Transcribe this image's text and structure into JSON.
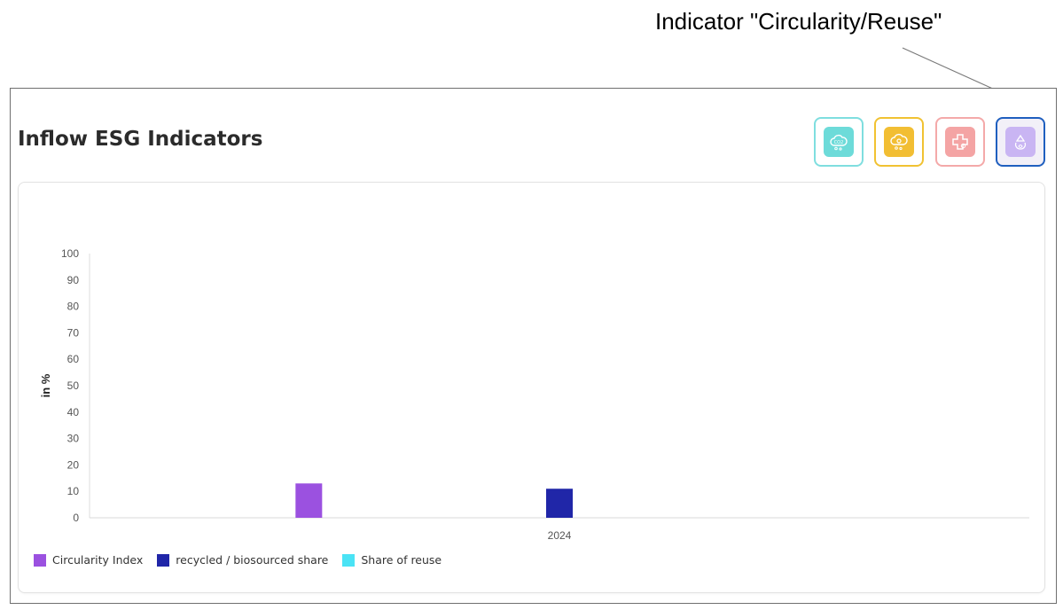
{
  "annotation": {
    "label": "Indicator \"Circularity/Reuse\""
  },
  "widget": {
    "title": "Inflow ESG Indicators",
    "indicator_buttons": [
      {
        "name": "co2-indicator",
        "icon": "cloud-co2-icon",
        "border": "#7fdedf",
        "fill": "#6ddbd9",
        "selected": false
      },
      {
        "name": "energy-indicator",
        "icon": "cloud-gear-icon",
        "border": "#f1c232",
        "fill": "#f2be33",
        "selected": false
      },
      {
        "name": "health-indicator",
        "icon": "medical-cross-icon",
        "border": "#f4a9a9",
        "fill": "#f4a4a4",
        "selected": false
      },
      {
        "name": "circularity-reuse-indicator",
        "icon": "recycle-leaf-icon",
        "border": "#1f5fbf",
        "fill": "#c9b5f3",
        "selected": true
      }
    ]
  },
  "chart_data": {
    "type": "bar",
    "categories": [
      "2024"
    ],
    "series": [
      {
        "name": "Circularity Index",
        "values": [
          13
        ],
        "color": "#9b51e0"
      },
      {
        "name": "recycled / biosourced share",
        "values": [
          11
        ],
        "color": "#2026a8"
      },
      {
        "name": "Share of reuse",
        "values": [
          0
        ],
        "color": "#4ae3f5"
      }
    ],
    "ylabel": "in %",
    "xlabel": "",
    "ylim": [
      0,
      100
    ],
    "yticks": [
      "0",
      "10",
      "20",
      "30",
      "40",
      "50",
      "60",
      "70",
      "80",
      "90",
      "100"
    ],
    "legend": "bottom-left",
    "grid": false
  }
}
